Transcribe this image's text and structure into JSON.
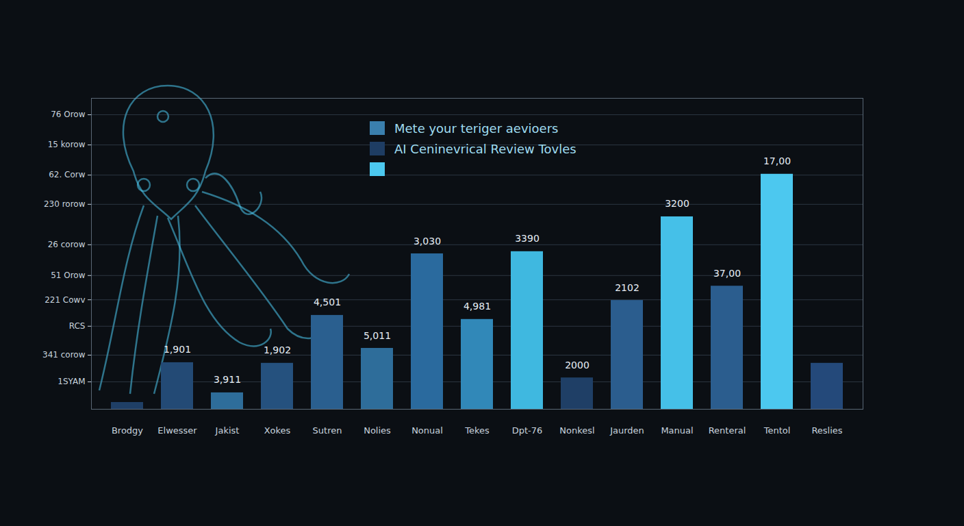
{
  "chart_data": {
    "type": "bar",
    "categories": [
      "Brodgy",
      "Elwesser",
      "Jakist",
      "Xokes",
      "Sutren",
      "Nolies",
      "Nonual",
      "Tekes",
      "Dpt-76",
      "Nonkesl",
      "Jaurden",
      "Manual",
      "Renteral",
      "Tentol",
      "Reslies"
    ],
    "values": [
      2.2,
      15,
      5.3,
      14.8,
      30.2,
      19.6,
      50,
      28.9,
      50.7,
      10.1,
      35,
      61.9,
      39.6,
      75.6,
      14.8
    ],
    "colors": [
      "#1f3f66",
      "#234a75",
      "#2e6d9a",
      "#25517e",
      "#2a5f8f",
      "#2e6d9a",
      "#2a6a9e",
      "#3188b8",
      "#3fb8e0",
      "#1f3f66",
      "#2b5d8e",
      "#45c0e8",
      "#2b5d8e",
      "#4cc8ef",
      "#24497a"
    ],
    "ylim": [
      0,
      100
    ],
    "yticks": [
      {
        "value": 8.8,
        "label": "1SYAM"
      },
      {
        "value": 17.4,
        "label": "341 corow"
      },
      {
        "value": 26.7,
        "label": "RCS"
      },
      {
        "value": 35.2,
        "label": "221 Cowv"
      },
      {
        "value": 43,
        "label": "51 Orow"
      },
      {
        "value": 52.9,
        "label": "26 corow"
      },
      {
        "value": 65.9,
        "label": "230 rorow"
      },
      {
        "value": 75.3,
        "label": "62. Corw"
      },
      {
        "value": 85,
        "label": "15 korow"
      },
      {
        "value": 94.7,
        "label": "76 Orow"
      }
    ],
    "grid": true,
    "annotations": [
      {
        "category": "Elwesser",
        "text": "1,901"
      },
      {
        "category": "Jakist",
        "text": "3,911"
      },
      {
        "category": "Xokes",
        "text": "1,902"
      },
      {
        "category": "Sutren",
        "text": "4,501"
      },
      {
        "category": "Nolies",
        "text": "5,011"
      },
      {
        "category": "Nonual",
        "text": "3,030"
      },
      {
        "category": "Tekes",
        "text": "4,981"
      },
      {
        "category": "Dpt-76",
        "text": "3390"
      },
      {
        "category": "Nonkesl",
        "text": "2000"
      },
      {
        "category": "Jaurden",
        "text": "2102"
      },
      {
        "category": "Manual",
        "text": "3200"
      },
      {
        "category": "Renteral",
        "text": "37,00"
      },
      {
        "category": "Tentol",
        "text": "17,00"
      }
    ],
    "legend": "top",
    "legend_items": [
      {
        "label": "Mete your teriger aevioers",
        "color": "#3a7fad"
      },
      {
        "label": "AI Ceninevrical Review Tovles",
        "color": "#1e3d63"
      },
      {
        "label": null,
        "color": "#4cc8ef"
      }
    ]
  }
}
